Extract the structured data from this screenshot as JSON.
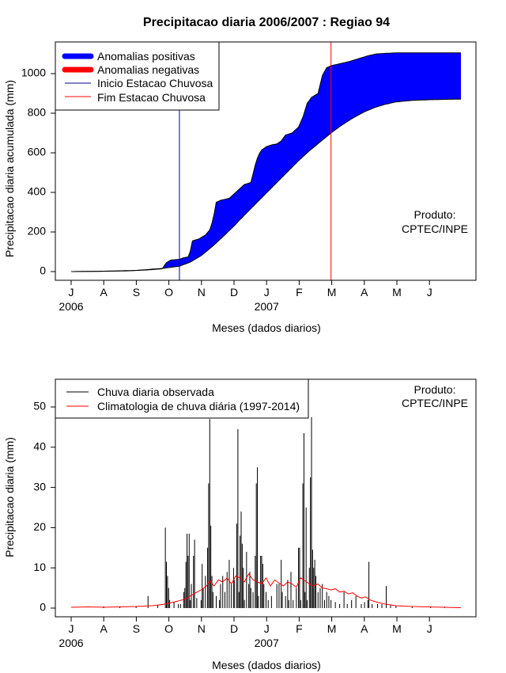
{
  "chart_data": [
    {
      "type": "area",
      "title": "Precipitacao diaria 2006/2007 : Regiao 94",
      "xlabel": "Meses (dados diarios)",
      "ylabel": "Precipitacao diaria acumulada (mm)",
      "ylim": [
        -40,
        1140
      ],
      "yticks": [
        0,
        200,
        400,
        600,
        800,
        1000
      ],
      "months": [
        "J",
        "A",
        "S",
        "O",
        "N",
        "D",
        "J",
        "F",
        "M",
        "A",
        "M",
        "J"
      ],
      "years": [
        {
          "label": "2006",
          "month_index": 0
        },
        {
          "label": "2007",
          "month_index": 6
        }
      ],
      "legend_position": "top-left",
      "legend": [
        {
          "label": "Anomalias positivas",
          "color": "#0000ff",
          "style": "thick"
        },
        {
          "label": "Anomalias negativas",
          "color": "#ff0000",
          "style": "thick"
        },
        {
          "label": "Inicio Estacao Chuvosa",
          "color": "#00008b",
          "style": "thin"
        },
        {
          "label": "Fim Estacao Chuvosa",
          "color": "#ff0000",
          "style": "thin"
        }
      ],
      "annotation": [
        "Produto:",
        "CPTEC/INPE"
      ],
      "rainy_season_start_day": 100,
      "rainy_season_end_day": 240,
      "observed_cumulative": [
        [
          0,
          0
        ],
        [
          25,
          1
        ],
        [
          50,
          3
        ],
        [
          70,
          8
        ],
        [
          84,
          14
        ],
        [
          88,
          45
        ],
        [
          92,
          58
        ],
        [
          96,
          60
        ],
        [
          100,
          62
        ],
        [
          104,
          70
        ],
        [
          109,
          75
        ],
        [
          112,
          155
        ],
        [
          118,
          165
        ],
        [
          124,
          185
        ],
        [
          128,
          210
        ],
        [
          131,
          260
        ],
        [
          134,
          350
        ],
        [
          138,
          360
        ],
        [
          142,
          365
        ],
        [
          146,
          370
        ],
        [
          150,
          390
        ],
        [
          156,
          420
        ],
        [
          160,
          440
        ],
        [
          166,
          450
        ],
        [
          171,
          560
        ],
        [
          175,
          610
        ],
        [
          180,
          630
        ],
        [
          185,
          640
        ],
        [
          190,
          645
        ],
        [
          194,
          660
        ],
        [
          198,
          690
        ],
        [
          204,
          700
        ],
        [
          210,
          730
        ],
        [
          214,
          780
        ],
        [
          218,
          850
        ],
        [
          222,
          880
        ],
        [
          228,
          900
        ],
        [
          232,
          990
        ],
        [
          236,
          1030
        ],
        [
          240,
          1040
        ],
        [
          248,
          1050
        ],
        [
          256,
          1060
        ],
        [
          262,
          1070
        ],
        [
          268,
          1080
        ],
        [
          274,
          1090
        ],
        [
          282,
          1100
        ],
        [
          300,
          1105
        ],
        [
          330,
          1105
        ],
        [
          360,
          1105
        ]
      ],
      "climatology_cumulative": [
        [
          0,
          0
        ],
        [
          30,
          2
        ],
        [
          60,
          6
        ],
        [
          84,
          16
        ],
        [
          100,
          27
        ],
        [
          110,
          48
        ],
        [
          120,
          80
        ],
        [
          130,
          125
        ],
        [
          140,
          175
        ],
        [
          150,
          228
        ],
        [
          160,
          285
        ],
        [
          170,
          340
        ],
        [
          180,
          395
        ],
        [
          190,
          450
        ],
        [
          200,
          505
        ],
        [
          210,
          560
        ],
        [
          220,
          610
        ],
        [
          230,
          655
        ],
        [
          240,
          700
        ],
        [
          250,
          740
        ],
        [
          260,
          775
        ],
        [
          270,
          805
        ],
        [
          280,
          828
        ],
        [
          290,
          845
        ],
        [
          300,
          857
        ],
        [
          315,
          865
        ],
        [
          330,
          868
        ],
        [
          345,
          870
        ],
        [
          360,
          871
        ]
      ]
    },
    {
      "type": "bar",
      "xlabel": "Meses (dados diarios)",
      "ylabel": "Precipitacao diaria (mm)",
      "ylim": [
        -2,
        56
      ],
      "yticks": [
        0,
        10,
        20,
        30,
        40,
        50
      ],
      "months": [
        "J",
        "A",
        "S",
        "O",
        "N",
        "D",
        "J",
        "F",
        "M",
        "A",
        "M",
        "J"
      ],
      "years": [
        {
          "label": "2006",
          "month_index": 0
        },
        {
          "label": "2007",
          "month_index": 6
        }
      ],
      "legend_position": "top-left",
      "legend": [
        {
          "label": "Chuva diaria observada",
          "color": "#000000"
        },
        {
          "label": "Climatologia de chuva diária (1997-2014)",
          "color": "#ff0000"
        }
      ],
      "annotation": [
        "Produto:",
        "CPTEC/INPE"
      ],
      "observed_daily": [
        [
          30,
          0.4
        ],
        [
          45,
          0.3
        ],
        [
          60,
          0.5
        ],
        [
          71,
          3
        ],
        [
          80,
          0.8
        ],
        [
          87,
          20
        ],
        [
          88,
          11.5
        ],
        [
          89,
          8
        ],
        [
          90,
          5
        ],
        [
          91,
          2
        ],
        [
          95,
          1.5
        ],
        [
          99,
          1
        ],
        [
          101,
          1
        ],
        [
          104,
          4
        ],
        [
          105,
          5
        ],
        [
          106,
          11.5
        ],
        [
          107,
          18.5
        ],
        [
          108,
          13
        ],
        [
          109,
          18.5
        ],
        [
          110,
          2
        ],
        [
          111,
          6
        ],
        [
          113,
          13
        ],
        [
          114,
          17
        ],
        [
          116,
          2.5
        ],
        [
          120,
          2
        ],
        [
          121,
          11
        ],
        [
          122,
          5
        ],
        [
          124,
          8
        ],
        [
          126,
          15
        ],
        [
          127,
          31
        ],
        [
          128,
          47
        ],
        [
          129,
          20.5
        ],
        [
          130,
          8
        ],
        [
          131,
          4
        ],
        [
          134,
          3
        ],
        [
          137,
          2
        ],
        [
          138,
          6
        ],
        [
          140,
          8
        ],
        [
          142,
          4
        ],
        [
          144,
          9
        ],
        [
          146,
          12
        ],
        [
          148,
          6
        ],
        [
          150,
          10
        ],
        [
          151,
          7
        ],
        [
          153,
          21
        ],
        [
          154,
          44.5
        ],
        [
          155,
          4
        ],
        [
          156,
          18
        ],
        [
          157,
          24
        ],
        [
          158,
          16
        ],
        [
          159,
          10
        ],
        [
          160,
          2
        ],
        [
          162,
          14
        ],
        [
          164,
          6
        ],
        [
          165,
          9
        ],
        [
          166,
          5
        ],
        [
          168,
          4
        ],
        [
          170,
          13
        ],
        [
          171,
          31
        ],
        [
          172,
          35
        ],
        [
          173,
          3
        ],
        [
          175,
          13
        ],
        [
          176,
          13
        ],
        [
          177,
          11
        ],
        [
          178,
          6
        ],
        [
          180,
          4
        ],
        [
          182,
          2
        ],
        [
          185,
          3
        ],
        [
          190,
          6
        ],
        [
          192,
          6
        ],
        [
          194,
          12
        ],
        [
          195,
          4
        ],
        [
          198,
          3
        ],
        [
          200,
          7
        ],
        [
          201,
          2
        ],
        [
          203,
          9
        ],
        [
          205,
          2
        ],
        [
          208,
          5
        ],
        [
          210,
          15
        ],
        [
          211,
          15
        ],
        [
          212,
          2
        ],
        [
          214,
          31
        ],
        [
          215,
          43.5
        ],
        [
          216,
          4
        ],
        [
          217,
          25
        ],
        [
          218,
          2
        ],
        [
          220,
          10
        ],
        [
          221,
          32.5
        ],
        [
          222,
          47.5
        ],
        [
          223,
          14.5
        ],
        [
          224,
          10
        ],
        [
          225,
          12
        ],
        [
          226,
          8
        ],
        [
          228,
          4
        ],
        [
          230,
          5
        ],
        [
          232,
          6
        ],
        [
          234,
          2
        ],
        [
          236,
          4
        ],
        [
          238,
          3
        ],
        [
          240,
          2
        ],
        [
          244,
          1.5
        ],
        [
          248,
          1
        ],
        [
          252,
          4
        ],
        [
          255,
          1
        ],
        [
          259,
          2
        ],
        [
          263,
          3
        ],
        [
          268,
          1
        ],
        [
          271,
          1.5
        ],
        [
          274,
          2
        ],
        [
          275,
          11.5
        ],
        [
          278,
          1
        ],
        [
          283,
          1
        ],
        [
          287,
          1
        ],
        [
          291,
          5.5
        ],
        [
          295,
          0.8
        ],
        [
          300,
          0.5
        ],
        [
          315,
          0.3
        ],
        [
          332,
          0.4
        ],
        [
          345,
          0.3
        ]
      ],
      "climatology_daily": [
        [
          0,
          0.2
        ],
        [
          15,
          0.3
        ],
        [
          30,
          0.2
        ],
        [
          45,
          0.3
        ],
        [
          60,
          0.4
        ],
        [
          75,
          0.6
        ],
        [
          85,
          0.9
        ],
        [
          95,
          1.5
        ],
        [
          105,
          2.2
        ],
        [
          110,
          3
        ],
        [
          115,
          3.8
        ],
        [
          120,
          4.5
        ],
        [
          125,
          5.5
        ],
        [
          128,
          6.8
        ],
        [
          132,
          5.5
        ],
        [
          136,
          7
        ],
        [
          140,
          6.5
        ],
        [
          144,
          7.5
        ],
        [
          148,
          6
        ],
        [
          152,
          8
        ],
        [
          156,
          7.5
        ],
        [
          160,
          6.5
        ],
        [
          164,
          8.5
        ],
        [
          168,
          7
        ],
        [
          172,
          6.5
        ],
        [
          176,
          6
        ],
        [
          180,
          7.5
        ],
        [
          184,
          5.5
        ],
        [
          188,
          7
        ],
        [
          192,
          6.2
        ],
        [
          196,
          5.5
        ],
        [
          200,
          6.5
        ],
        [
          204,
          6
        ],
        [
          208,
          5.2
        ],
        [
          212,
          7.5
        ],
        [
          216,
          6.8
        ],
        [
          220,
          6
        ],
        [
          224,
          5.5
        ],
        [
          228,
          6
        ],
        [
          232,
          5
        ],
        [
          236,
          4.8
        ],
        [
          240,
          4.5
        ],
        [
          244,
          4.8
        ],
        [
          248,
          4
        ],
        [
          252,
          4.2
        ],
        [
          256,
          3.5
        ],
        [
          260,
          3.8
        ],
        [
          264,
          3
        ],
        [
          268,
          2.5
        ],
        [
          272,
          2.8
        ],
        [
          276,
          2
        ],
        [
          282,
          1.5
        ],
        [
          290,
          1
        ],
        [
          300,
          0.6
        ],
        [
          315,
          0.4
        ],
        [
          330,
          0.3
        ],
        [
          345,
          0.2
        ],
        [
          360,
          0.1
        ]
      ]
    }
  ]
}
